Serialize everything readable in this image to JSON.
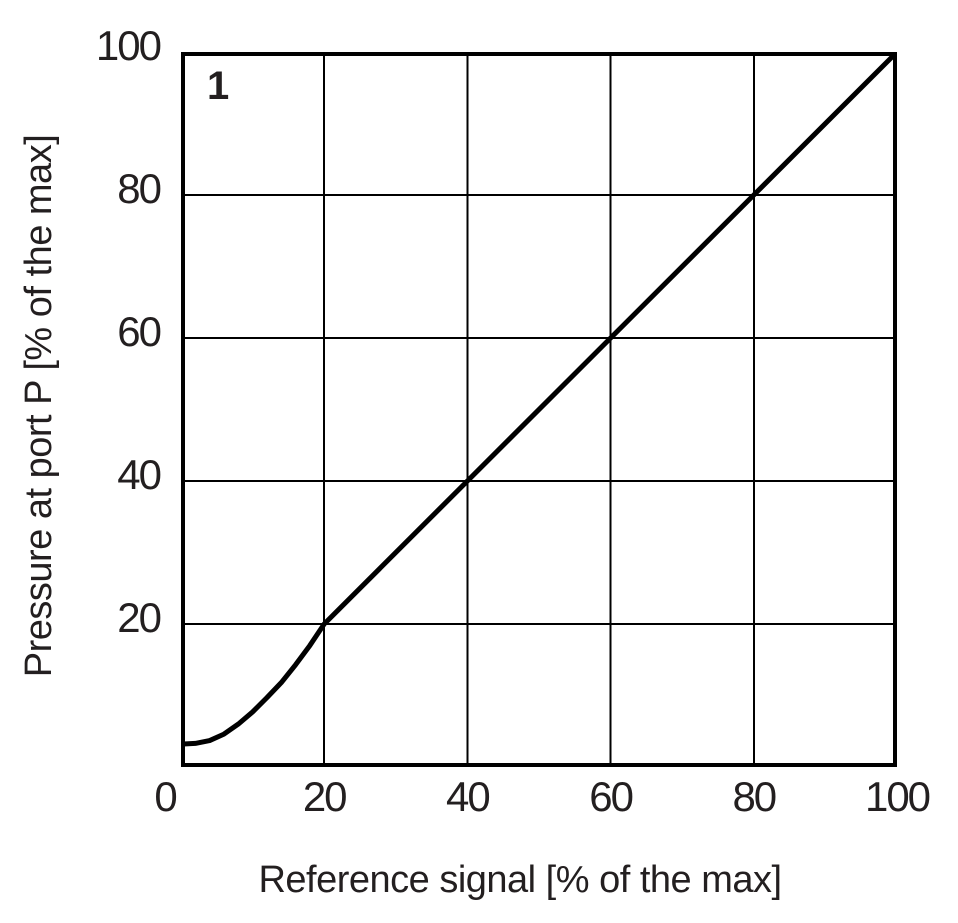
{
  "figure": {
    "label": "1"
  },
  "colors": {
    "line": "#000000",
    "text": "#231f20",
    "background": "#ffffff"
  },
  "chart_data": {
    "type": "line",
    "title": "",
    "xlabel": "Reference signal [% of the max]",
    "ylabel": "Pressure at port P [% of the max]",
    "xlim": [
      0,
      100
    ],
    "ylim": [
      0,
      100
    ],
    "x_ticks": [
      0,
      20,
      40,
      60,
      80,
      100
    ],
    "y_ticks": [
      20,
      40,
      60,
      80,
      100
    ],
    "grid": true,
    "legend_position": "none",
    "curve_label": "1",
    "series": [
      {
        "name": "pressure-at-port-P-vs-reference-signal",
        "color": "#000000",
        "stroke_width": 5,
        "points": [
          [
            0,
            3.2
          ],
          [
            2,
            3.3
          ],
          [
            4,
            3.7
          ],
          [
            6,
            4.6
          ],
          [
            8,
            6.0
          ],
          [
            10,
            7.7
          ],
          [
            12,
            9.7
          ],
          [
            14,
            11.8
          ],
          [
            16,
            14.3
          ],
          [
            18,
            17.0
          ],
          [
            20,
            20
          ],
          [
            40,
            40
          ],
          [
            60,
            60
          ],
          [
            80,
            80
          ],
          [
            100,
            100
          ]
        ]
      }
    ]
  }
}
